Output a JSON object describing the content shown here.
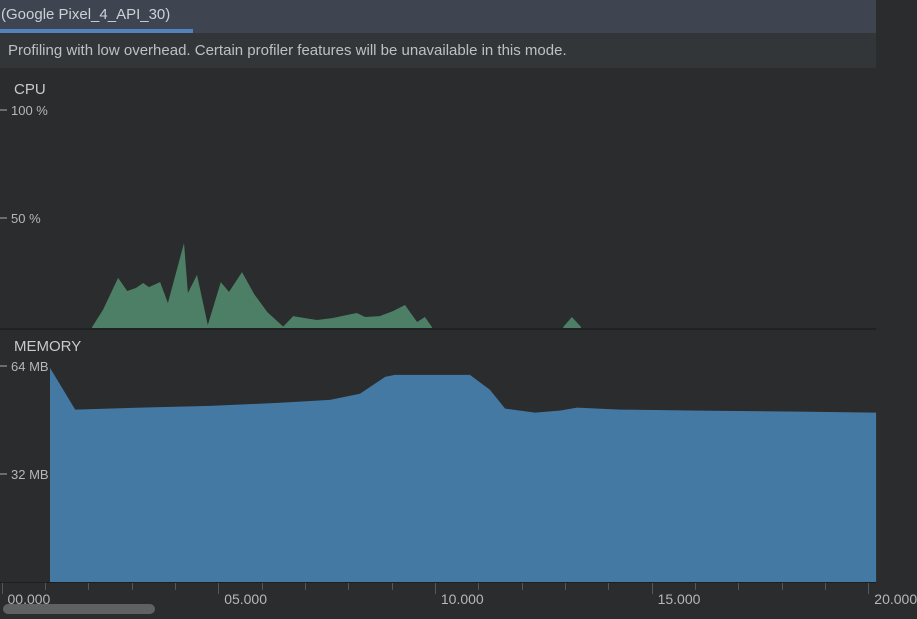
{
  "tabbar": {
    "tab_label": "(Google Pixel_4_API_30)"
  },
  "banner": {
    "message": "Profiling with low overhead. Certain profiler features will be unavailable in this mode."
  },
  "cpu_section": {
    "title": "CPU",
    "yticks": [
      {
        "label": "100 %"
      },
      {
        "label": "50 %"
      }
    ]
  },
  "memory_section": {
    "title": "MEMORY",
    "yticks": [
      {
        "label": "64 MB"
      },
      {
        "label": "32 MB"
      }
    ]
  },
  "time_axis": {
    "start_s": 0,
    "end_s": 20,
    "minor_step_s": 1,
    "major_step_s": 5,
    "major_labels": [
      "00.000",
      "05.000",
      "10.000",
      "15.000",
      "20.000"
    ]
  },
  "colors": {
    "tab_underline": "#5383bd",
    "cpu_fill": "#4d7f67",
    "memory_fill": "#4479a4"
  },
  "chart_data": [
    {
      "id": "cpu",
      "type": "area",
      "title": "CPU",
      "unit": "%",
      "ylim": [
        0,
        100
      ],
      "xlim_s": [
        0,
        20.2
      ],
      "legend": "none",
      "grid": "off",
      "series": [
        {
          "name": "cpu-usage-percent",
          "segments": [
            [
              [
                2.09,
                0
              ],
              [
                2.34,
                7.8
              ],
              [
                2.69,
                22.5
              ],
              [
                2.9,
                16.5
              ],
              [
                3.1,
                17.9
              ],
              [
                3.27,
                20.2
              ],
              [
                3.4,
                18.3
              ],
              [
                3.66,
                20.6
              ],
              [
                3.84,
                11.0
              ],
              [
                4.21,
                38.5
              ],
              [
                4.3,
                15.6
              ],
              [
                4.51,
                23.9
              ],
              [
                4.67,
                9.2
              ],
              [
                4.76,
                0.9
              ],
              [
                5.06,
                20.6
              ],
              [
                5.25,
                16.1
              ],
              [
                5.55,
                25.2
              ],
              [
                5.83,
                15.1
              ],
              [
                6.13,
                6.9
              ],
              [
                6.5,
                0.2
              ],
              [
                6.73,
                5.0
              ],
              [
                7.0,
                4.1
              ],
              [
                7.28,
                3.2
              ],
              [
                7.63,
                4.1
              ],
              [
                7.97,
                5.5
              ],
              [
                8.2,
                6.4
              ],
              [
                8.39,
                4.6
              ],
              [
                8.73,
                5.0
              ],
              [
                9.03,
                7.3
              ],
              [
                9.31,
                10.1
              ],
              [
                9.59,
                2.3
              ],
              [
                9.77,
                4.6
              ],
              [
                9.93,
                0
              ]
            ],
            [
              [
                12.96,
                0
              ],
              [
                13.16,
                4.6
              ],
              [
                13.37,
                0
              ]
            ]
          ]
        }
      ]
    },
    {
      "id": "memory",
      "type": "area",
      "title": "MEMORY",
      "unit": "MB",
      "ylim": [
        0,
        64
      ],
      "xlim_s": [
        0,
        20.2
      ],
      "legend": "none",
      "grid": "off",
      "series": [
        {
          "name": "memory-total-mb",
          "segments": [
            [
              [
                1.12,
                63.4
              ],
              [
                1.7,
                51.0
              ],
              [
                3.2,
                51.6
              ],
              [
                4.81,
                52.1
              ],
              [
                6.43,
                53.0
              ],
              [
                7.58,
                53.9
              ],
              [
                8.27,
                55.7
              ],
              [
                8.85,
                60.7
              ],
              [
                9.08,
                61.3
              ],
              [
                10.81,
                61.3
              ],
              [
                11.27,
                56.9
              ],
              [
                11.62,
                51.3
              ],
              [
                12.31,
                50.1
              ],
              [
                12.88,
                50.7
              ],
              [
                13.28,
                51.6
              ],
              [
                14.27,
                51.0
              ],
              [
                16.12,
                50.7
              ],
              [
                18.42,
                50.4
              ],
              [
                20.18,
                50.1
              ]
            ]
          ]
        }
      ]
    }
  ]
}
